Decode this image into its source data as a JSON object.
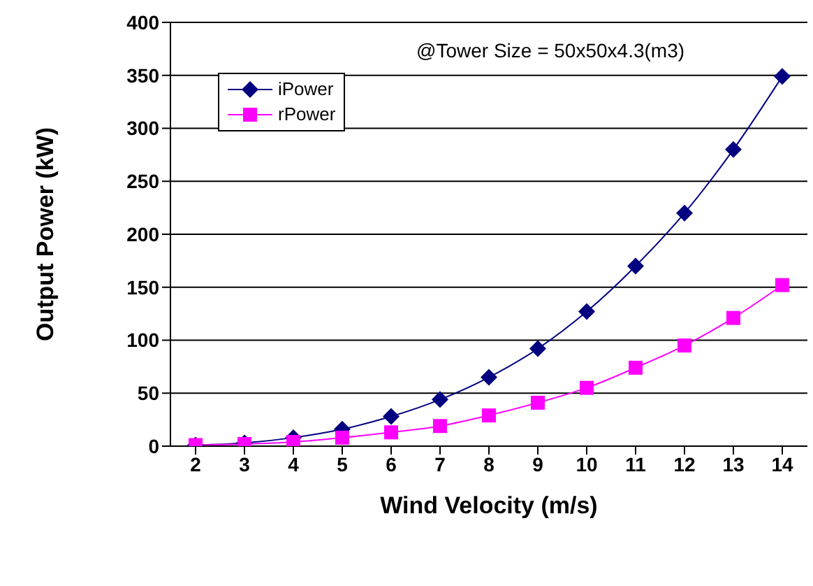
{
  "chart_data": {
    "type": "line",
    "xlabel": "Wind Velocity (m/s)",
    "ylabel": "Output Power (kW)",
    "annotations": [
      "@Tower Size = 50x50x4.3(m3)"
    ],
    "categories": [
      "2",
      "3",
      "4",
      "5",
      "6",
      "7",
      "8",
      "9",
      "10",
      "11",
      "12",
      "13",
      "14"
    ],
    "series": [
      {
        "name": "iPower",
        "color": "#000080",
        "marker": "diamond",
        "values": [
          1,
          3,
          8,
          16,
          28,
          44,
          65,
          92,
          127,
          170,
          220,
          280,
          349
        ]
      },
      {
        "name": "rPower",
        "color": "#ff00ff",
        "marker": "square",
        "values": [
          1,
          2,
          4,
          8,
          13,
          19,
          29,
          41,
          55,
          74,
          95,
          121,
          152
        ]
      }
    ],
    "ylim": [
      0,
      400
    ],
    "yticks": [
      0,
      50,
      100,
      150,
      200,
      250,
      300,
      350,
      400
    ],
    "grid": "y",
    "legend": "top left",
    "line_style": "solid"
  }
}
